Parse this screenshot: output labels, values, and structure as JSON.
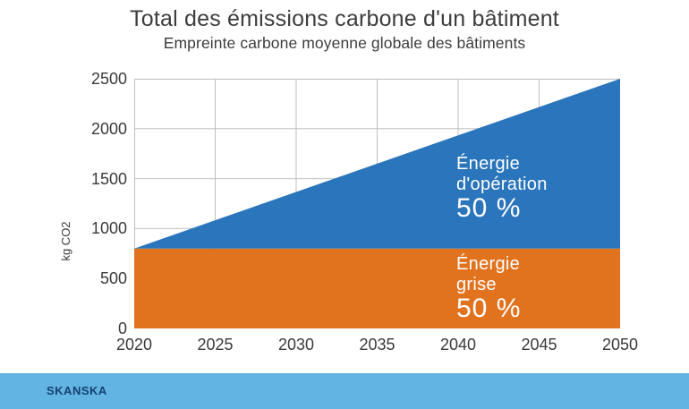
{
  "header": {
    "title": "Total des émissions carbone d'un bâtiment",
    "subtitle": "Empreinte carbone moyenne globale des bâtiments"
  },
  "chart_data": {
    "type": "area",
    "stacked": true,
    "title": "Total des émissions carbone d'un bâtiment",
    "subtitle": "Empreinte carbone moyenne globale des bâtiments",
    "x": [
      2020,
      2050
    ],
    "x_ticks": [
      2020,
      2025,
      2030,
      2035,
      2040,
      2045,
      2050
    ],
    "y_ticks": [
      0,
      500,
      1000,
      1500,
      2000,
      2500
    ],
    "ylim": [
      0,
      2500
    ],
    "xlabel": "",
    "ylabel": "kg CO2",
    "grid": true,
    "legend_position": "inside-areas",
    "series": [
      {
        "name": "Énergie grise",
        "name_lines": [
          "Énergie",
          "grise"
        ],
        "share": "50 %",
        "color": "#e1731f",
        "values": [
          800,
          800
        ]
      },
      {
        "name": "Énergie d'opération",
        "name_lines": [
          "Énergie",
          "d'opération"
        ],
        "share": "50 %",
        "color": "#2a75bc",
        "values": [
          0,
          1700
        ]
      }
    ]
  },
  "footer": {
    "brand": "SKANSKA"
  },
  "colors": {
    "footer-bg": "#62b4e3",
    "brand": "#17406e",
    "grid": "#bfbfbf",
    "axis-text": "#3a3a3a",
    "title-text": "#3d3d3d",
    "series-blue": "#2a75bc",
    "series-orange": "#e1731f"
  }
}
